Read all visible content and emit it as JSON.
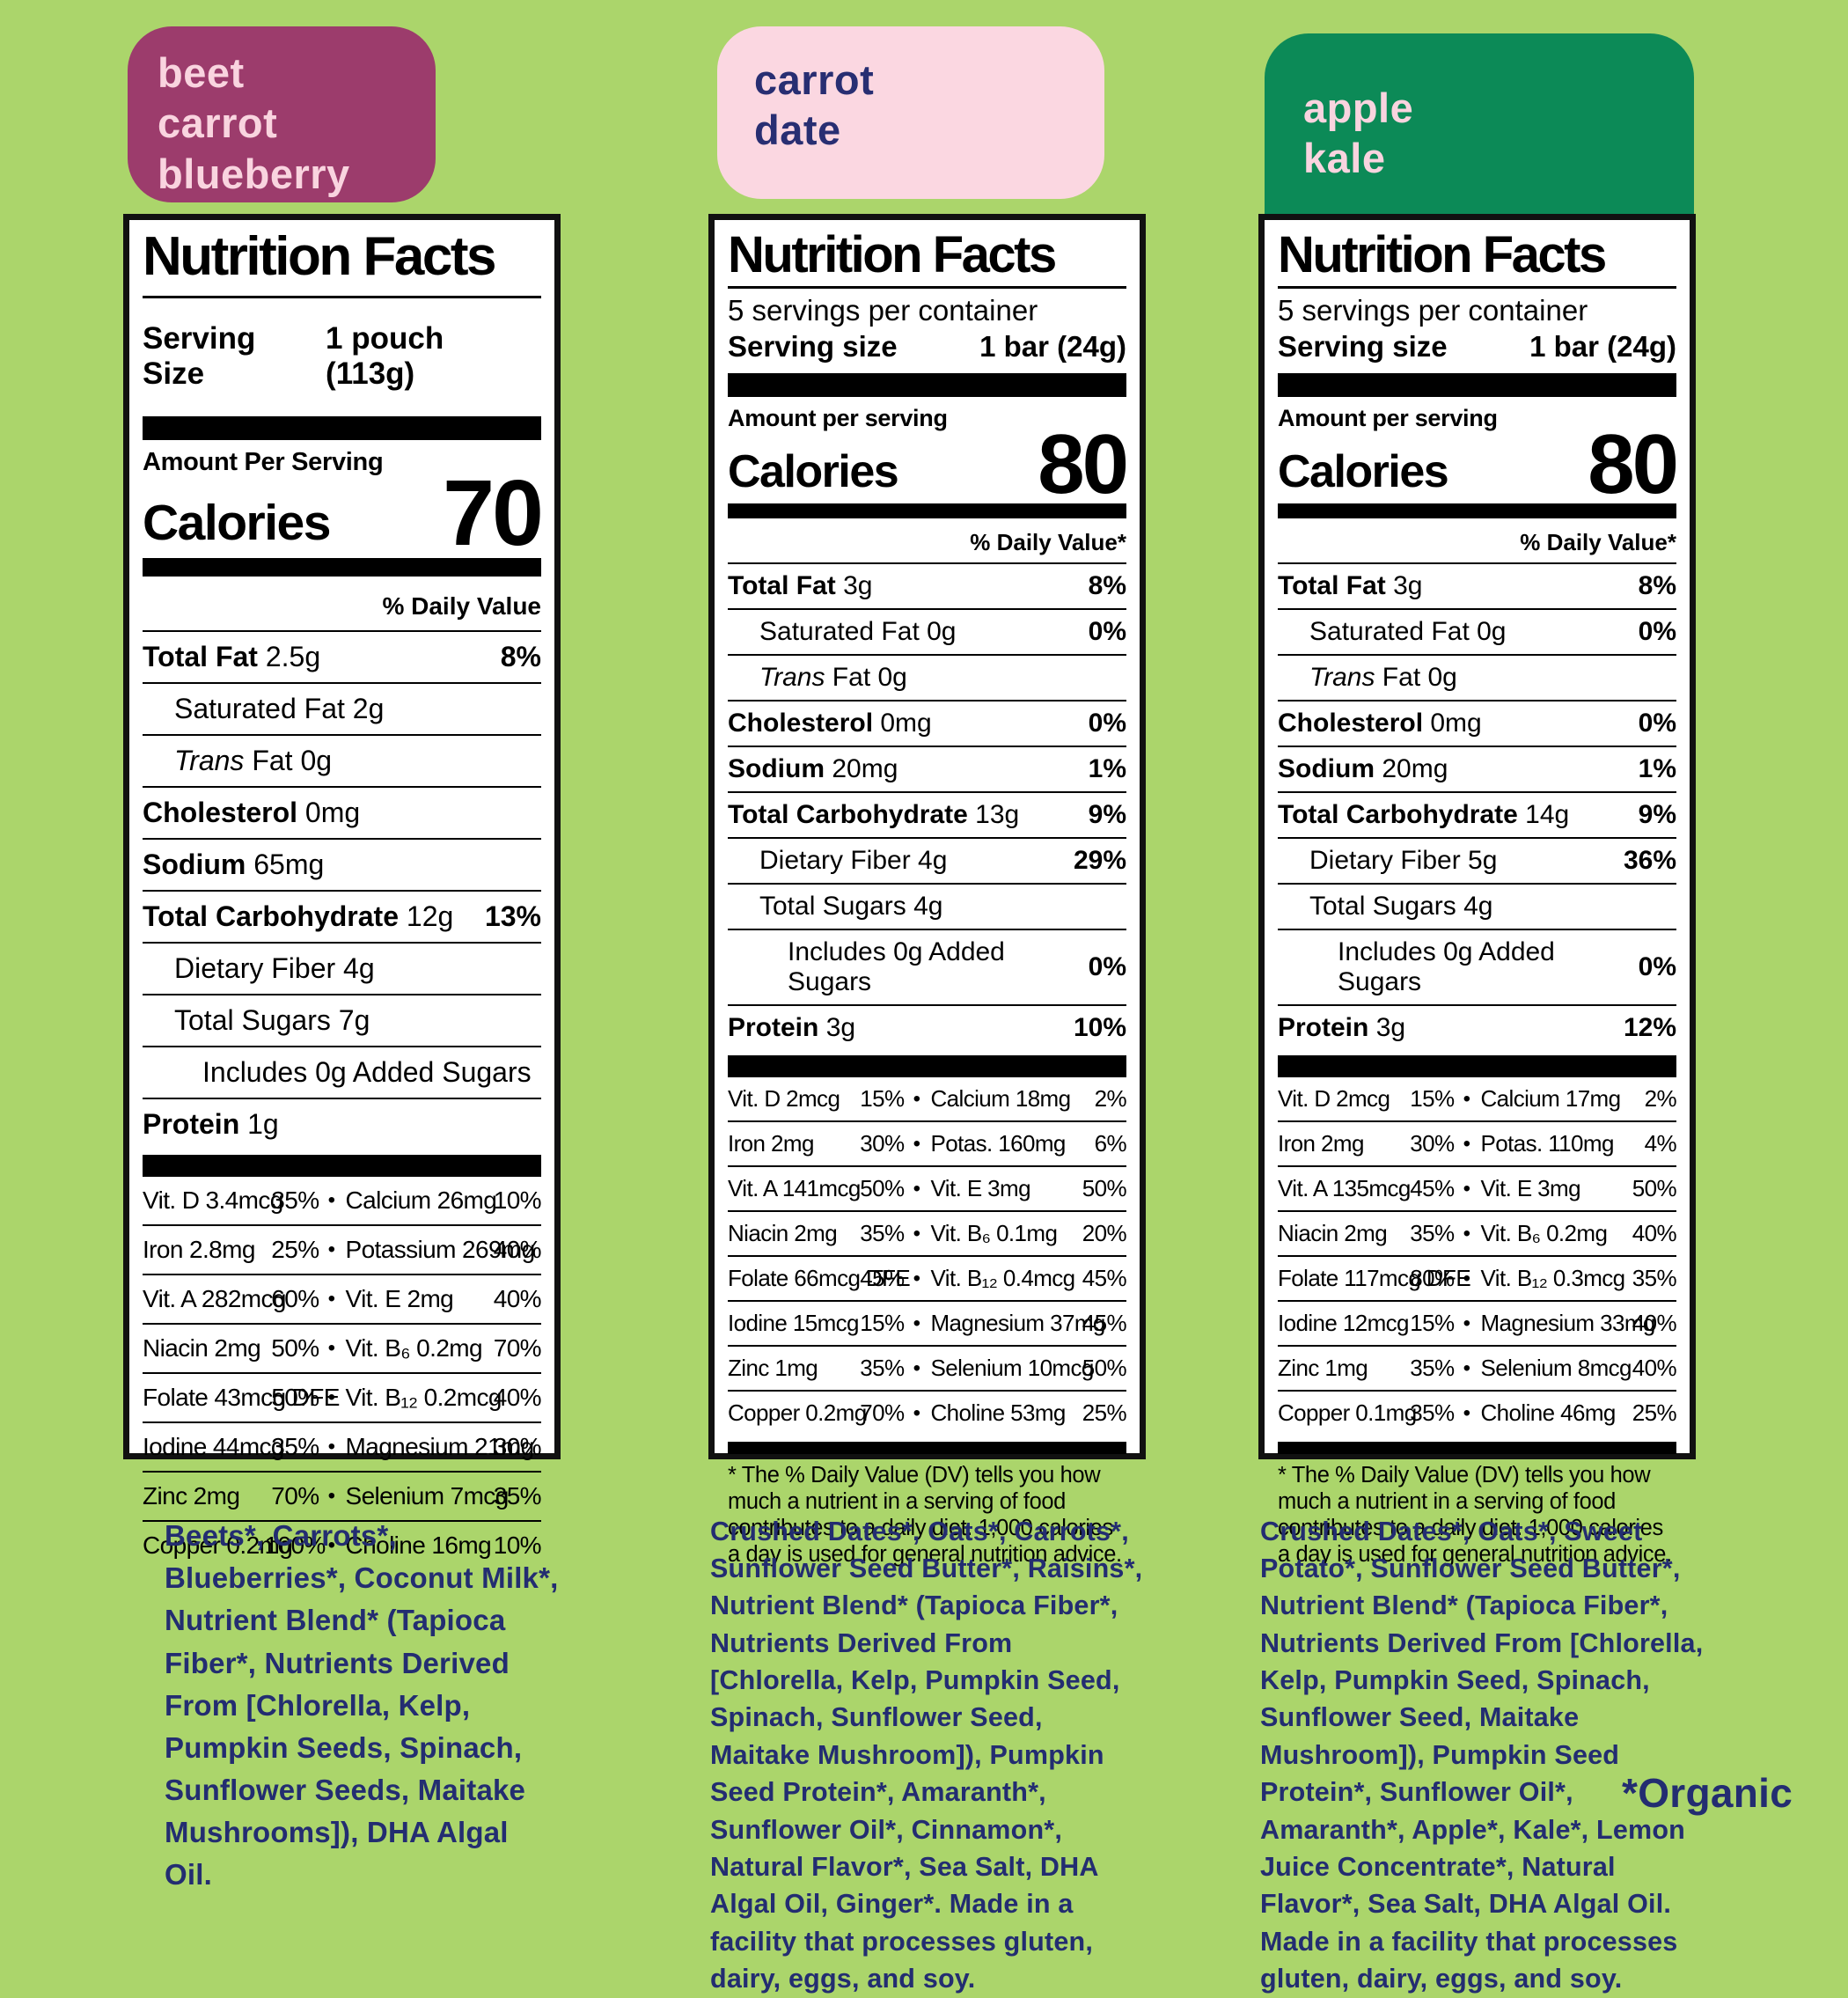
{
  "page": {
    "background": "#abd56b",
    "ink": "#232d71",
    "organic_note": "*Organic"
  },
  "products": [
    {
      "badge": {
        "lines": [
          "beet",
          "carrot",
          "blueberry"
        ],
        "bg": "#9c3c6c",
        "fg": "#f9d4df"
      },
      "panel": {
        "title": "Nutrition Facts",
        "servings_per_container": null,
        "serving_size_label": "Serving Size",
        "serving_size_value": "1 pouch (113g)",
        "amount_label": "Amount Per Serving",
        "calories_label": "Calories",
        "calories_value": "70",
        "daily_value_label": "% Daily Value",
        "rows": [
          {
            "name": "Total Fat",
            "rest": " 2.5g",
            "pct": "8%"
          },
          {
            "rest": "Saturated Fat 2g",
            "indent": 1
          },
          {
            "name": "Trans",
            "italic": true,
            "rest": " Fat 0g",
            "indent": 1
          },
          {
            "name": "Cholesterol",
            "rest": " 0mg"
          },
          {
            "name": "Sodium",
            "rest": " 65mg"
          },
          {
            "name": "Total Carbohydrate",
            "rest": " 12g",
            "pct": "13%"
          },
          {
            "rest": "Dietary Fiber 4g",
            "indent": 1
          },
          {
            "rest": "Total Sugars 7g",
            "indent": 1
          },
          {
            "rest": "Includes 0g Added Sugars",
            "indent": 2
          },
          {
            "name": "Protein",
            "rest": " 1g"
          }
        ],
        "vitamins": [
          {
            "l": "Vit. D 3.4mcg",
            "lp": "35%",
            "r": "Calcium 26mg",
            "rp": "10%"
          },
          {
            "l": "Iron 2.8mg",
            "lp": "25%",
            "r": "Potassium 269mg",
            "rp": "40%"
          },
          {
            "l": "Vit. A 282mcg",
            "lp": "60%",
            "r": "Vit. E 2mg",
            "rp": "40%"
          },
          {
            "l": "Niacin 2mg",
            "lp": "50%",
            "r": "Vit. B₆ 0.2mg",
            "rp": "70%"
          },
          {
            "l": "Folate 43mcg DFE",
            "lp": "50%",
            "r": "Vit. B₁₂ 0.2mcg",
            "rp": "40%"
          },
          {
            "l": "Iodine 44mcg",
            "lp": "35%",
            "r": "Magnesium 21mg",
            "rp": "30%"
          },
          {
            "l": "Zinc 2mg",
            "lp": "70%",
            "r": "Selenium 7mcg",
            "rp": "35%"
          },
          {
            "l": "Copper 0.2mg",
            "lp": "100%",
            "r": "Choline 16mg",
            "rp": "10%"
          }
        ],
        "footnote": null
      },
      "ingredients": "Beets*, Carrots*, Blueberries*, Coconut Milk*, Nutrient Blend* (Tapioca Fiber*, Nutrients Derived From [Chlorella, Kelp, Pumpkin Seeds, Spinach, Sunflower Seeds, Maitake Mushrooms]), DHA Algal Oil.",
      "allergen": null
    },
    {
      "badge": {
        "lines": [
          "carrot",
          "date",
          ""
        ],
        "bg": "#fbd7e1",
        "fg": "#282e72"
      },
      "panel": {
        "title": "Nutrition Facts",
        "servings_per_container": "5 servings per container",
        "serving_size_label": "Serving size",
        "serving_size_value": "1 bar (24g)",
        "amount_label": "Amount per serving",
        "calories_label": "Calories",
        "calories_value": "80",
        "daily_value_label": "% Daily Value*",
        "rows": [
          {
            "name": "Total Fat",
            "rest": " 3g",
            "pct": "8%"
          },
          {
            "rest": "Saturated Fat 0g",
            "indent": 1,
            "pct": "0%"
          },
          {
            "name": "Trans",
            "italic": true,
            "rest": " Fat 0g",
            "indent": 1
          },
          {
            "name": "Cholesterol",
            "rest": " 0mg",
            "pct": "0%"
          },
          {
            "name": "Sodium",
            "rest": " 20mg",
            "pct": "1%"
          },
          {
            "name": "Total Carbohydrate",
            "rest": " 13g",
            "pct": "9%"
          },
          {
            "rest": "Dietary Fiber 4g",
            "indent": 1,
            "pct": "29%"
          },
          {
            "rest": "Total Sugars 4g",
            "indent": 1
          },
          {
            "rest": "Includes 0g Added Sugars",
            "indent": 2,
            "pct": "0%"
          },
          {
            "name": "Protein",
            "rest": " 3g",
            "pct": "10%"
          }
        ],
        "vitamins": [
          {
            "l": "Vit. D 2mcg",
            "lp": "15%",
            "r": "Calcium 18mg",
            "rp": "2%"
          },
          {
            "l": "Iron 2mg",
            "lp": "30%",
            "r": "Potas. 160mg",
            "rp": "6%"
          },
          {
            "l": "Vit. A 141mcg",
            "lp": "50%",
            "r": "Vit. E 3mg",
            "rp": "50%"
          },
          {
            "l": "Niacin 2mg",
            "lp": "35%",
            "r": "Vit. B₆ 0.1mg",
            "rp": "20%"
          },
          {
            "l": "Folate 66mcg DFE",
            "lp": "45%",
            "r": "Vit. B₁₂ 0.4mcg",
            "rp": "45%"
          },
          {
            "l": "Iodine 15mcg",
            "lp": "15%",
            "r": "Magnesium 37mg",
            "rp": "45%"
          },
          {
            "l": "Zinc 1mg",
            "lp": "35%",
            "r": "Selenium 10mcg",
            "rp": "50%"
          },
          {
            "l": "Copper 0.2mg",
            "lp": "70%",
            "r": "Choline 53mg",
            "rp": "25%"
          }
        ],
        "footnote": "* The % Daily Value (DV) tells you how much a nutrient in a serving of food contributes to a daily diet. 1,000 calories a day is used for general nutrition advice."
      },
      "ingredients": "Crushed Dates*, Oats*, Carrots*, Sunflower Seed Butter*, Raisins*, Nutrient Blend* (Tapioca Fiber*, Nutrients Derived From [Chlorella, Kelp, Pumpkin Seed, Spinach, Sunflower Seed, Maitake Mushroom]), Pumpkin Seed Protein*, Amaranth*, Sunflower Oil*, Cinnamon*, Natural Flavor*, Sea Salt, DHA Algal Oil, Ginger*. ",
      "allergen": "Made in a facility that processes gluten, dairy, eggs, and soy."
    },
    {
      "badge": {
        "lines": [
          "apple",
          "kale",
          ""
        ],
        "bg": "#0c8a57",
        "fg": "#f9d4df"
      },
      "panel": {
        "title": "Nutrition Facts",
        "servings_per_container": "5 servings per container",
        "serving_size_label": "Serving size",
        "serving_size_value": "1 bar (24g)",
        "amount_label": "Amount per serving",
        "calories_label": "Calories",
        "calories_value": "80",
        "daily_value_label": "% Daily Value*",
        "rows": [
          {
            "name": "Total Fat",
            "rest": " 3g",
            "pct": "8%"
          },
          {
            "rest": "Saturated Fat 0g",
            "indent": 1,
            "pct": "0%"
          },
          {
            "name": "Trans",
            "italic": true,
            "rest": " Fat 0g",
            "indent": 1
          },
          {
            "name": "Cholesterol",
            "rest": " 0mg",
            "pct": "0%"
          },
          {
            "name": "Sodium",
            "rest": " 20mg",
            "pct": "1%"
          },
          {
            "name": "Total Carbohydrate",
            "rest": " 14g",
            "pct": "9%"
          },
          {
            "rest": "Dietary Fiber 5g",
            "indent": 1,
            "pct": "36%"
          },
          {
            "rest": "Total Sugars 4g",
            "indent": 1
          },
          {
            "rest": "Includes 0g Added Sugars",
            "indent": 2,
            "pct": "0%"
          },
          {
            "name": "Protein",
            "rest": " 3g",
            "pct": "12%"
          }
        ],
        "vitamins": [
          {
            "l": "Vit. D 2mcg",
            "lp": "15%",
            "r": "Calcium 17mg",
            "rp": "2%"
          },
          {
            "l": "Iron 2mg",
            "lp": "30%",
            "r": "Potas. 110mg",
            "rp": "4%"
          },
          {
            "l": "Vit. A 135mcg",
            "lp": "45%",
            "r": "Vit. E 3mg",
            "rp": "50%"
          },
          {
            "l": "Niacin 2mg",
            "lp": "35%",
            "r": "Vit. B₆ 0.2mg",
            "rp": "40%"
          },
          {
            "l": "Folate 117mcg DFE",
            "lp": "80%",
            "r": "Vit. B₁₂ 0.3mcg",
            "rp": "35%"
          },
          {
            "l": "Iodine 12mcg",
            "lp": "15%",
            "r": "Magnesium 33mg",
            "rp": "40%"
          },
          {
            "l": "Zinc 1mg",
            "lp": "35%",
            "r": "Selenium 8mcg",
            "rp": "40%"
          },
          {
            "l": "Copper 0.1mg",
            "lp": "35%",
            "r": "Choline 46mg",
            "rp": "25%"
          }
        ],
        "footnote": "* The % Daily Value (DV) tells you how much a nutrient in a serving of food contributes to a daily diet. 1,000 calories a day is used for general nutrition advice."
      },
      "ingredients": "Crushed Dates*, Oats*, Sweet Potato*, Sunflower Seed Butter*, Nutrient Blend* (Tapioca Fiber*, Nutrients Derived From [Chlorella, Kelp, Pumpkin Seed, Spinach, Sunflower Seed, Maitake Mushroom]), Pumpkin Seed Protein*, Sunflower Oil*, Amaranth*, Apple*, Kale*, Lemon Juice Concentrate*, Natural Flavor*, Sea Salt, DHA Algal Oil. ",
      "allergen": "Made in a facility that processes gluten, dairy, eggs, and soy."
    }
  ]
}
